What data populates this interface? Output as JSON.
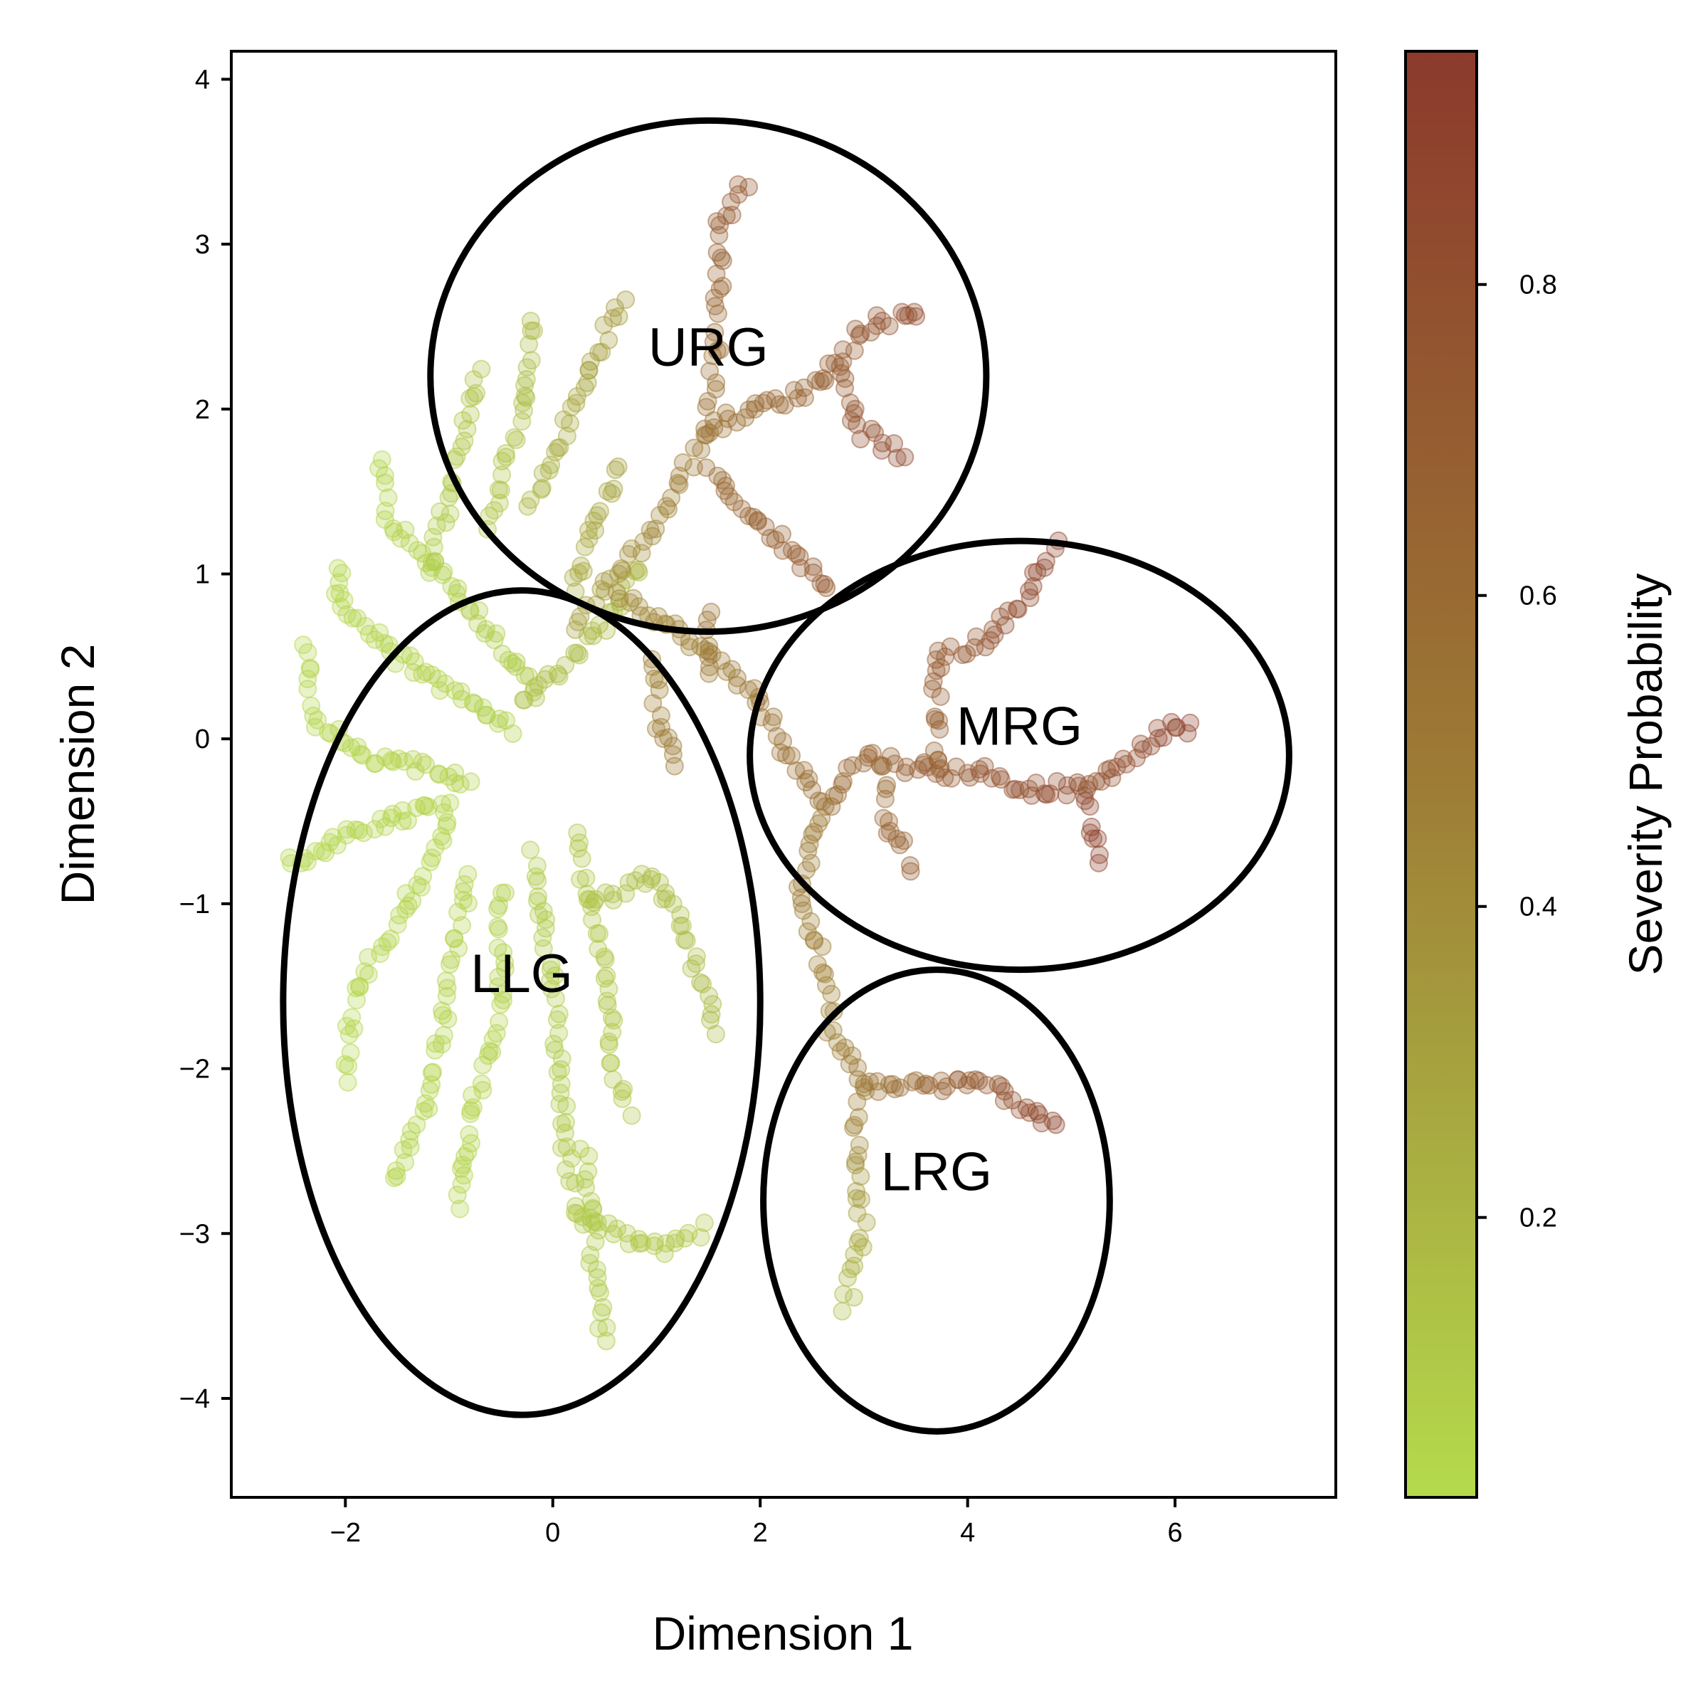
{
  "chart_data": {
    "type": "scatter",
    "xlabel": "Dimension 1",
    "ylabel": "Dimension 2",
    "xlim": [
      -3.1,
      7.55
    ],
    "ylim": [
      -4.6,
      4.17
    ],
    "xticks": [
      -2,
      0,
      2,
      4,
      6
    ],
    "yticks": [
      -4,
      -3,
      -2,
      -1,
      0,
      1,
      2,
      3,
      4
    ],
    "xtick_labels": [
      "−2",
      "0",
      "2",
      "4",
      "6"
    ],
    "ytick_labels": [
      "−4",
      "−3",
      "−2",
      "−1",
      "0",
      "1",
      "2",
      "3",
      "4"
    ],
    "grid": false,
    "point_alpha": 0.3,
    "colorbar": {
      "label": "Severity Probability",
      "range": [
        0.02,
        0.95
      ],
      "ticks": [
        0.2,
        0.4,
        0.6,
        0.8
      ],
      "tick_labels": [
        "0.2",
        "0.4",
        "0.6",
        "0.8"
      ],
      "colors": [
        "#b4db4c",
        "#9d7b35",
        "#8c3a2c"
      ]
    },
    "branches": [
      {
        "points": [
          [
            -0.2,
            0.3
          ],
          [
            -1.0,
            0.95
          ],
          [
            -1.6,
            1.35
          ],
          [
            -1.65,
            1.75
          ]
        ],
        "p": [
          0.1,
          0.05
        ]
      },
      {
        "points": [
          [
            -0.4,
            0.05
          ],
          [
            -1.5,
            0.5
          ],
          [
            -2.1,
            0.85
          ],
          [
            -2.0,
            1.1
          ]
        ],
        "p": [
          0.08,
          0.04
        ]
      },
      {
        "points": [
          [
            -0.8,
            -0.25
          ],
          [
            -1.8,
            -0.1
          ],
          [
            -2.3,
            0.1
          ],
          [
            -2.4,
            0.6
          ]
        ],
        "p": [
          0.07,
          0.04
        ]
      },
      {
        "points": [
          [
            -1.0,
            -0.4
          ],
          [
            -1.9,
            -0.55
          ],
          [
            -2.6,
            -0.8
          ]
        ],
        "p": [
          0.06,
          0.04
        ]
      },
      {
        "points": [
          [
            -1.0,
            -0.5
          ],
          [
            -1.3,
            -0.9
          ],
          [
            -1.9,
            -1.5
          ],
          [
            -2.0,
            -2.1
          ]
        ],
        "p": [
          0.06,
          0.04
        ]
      },
      {
        "points": [
          [
            -0.8,
            -0.8
          ],
          [
            -1.0,
            -1.5
          ],
          [
            -1.2,
            -2.2
          ],
          [
            -1.6,
            -2.75
          ]
        ],
        "p": [
          0.07,
          0.05
        ]
      },
      {
        "points": [
          [
            -0.5,
            -0.9
          ],
          [
            -0.5,
            -1.6
          ],
          [
            -0.8,
            -2.3
          ],
          [
            -0.9,
            -2.9
          ]
        ],
        "p": [
          0.08,
          0.05
        ]
      },
      {
        "points": [
          [
            -0.2,
            -0.7
          ],
          [
            0.0,
            -1.5
          ],
          [
            0.1,
            -2.3
          ],
          [
            0.2,
            -2.9
          ],
          [
            1.0,
            -3.1
          ],
          [
            1.5,
            -2.95
          ]
        ],
        "p": [
          0.1,
          0.12
        ]
      },
      {
        "points": [
          [
            0.3,
            -2.5
          ],
          [
            0.4,
            -3.2
          ],
          [
            0.5,
            -3.7
          ]
        ],
        "p": [
          0.1,
          0.1
        ]
      },
      {
        "points": [
          [
            0.2,
            -0.6
          ],
          [
            0.5,
            -1.3
          ],
          [
            0.6,
            -2.0
          ],
          [
            0.75,
            -2.3
          ]
        ],
        "p": [
          0.12,
          0.12
        ]
      },
      {
        "points": [
          [
            0.4,
            -1.0
          ],
          [
            1.0,
            -0.8
          ],
          [
            1.3,
            -1.2
          ],
          [
            1.6,
            -1.8
          ]
        ],
        "p": [
          0.15,
          0.18
        ]
      },
      {
        "points": [
          [
            -0.3,
            0.2
          ],
          [
            0.5,
            0.7
          ],
          [
            0.9,
            1.1
          ]
        ],
        "p": [
          0.15,
          0.2
        ]
      },
      {
        "points": [
          [
            -0.6,
            1.3
          ],
          [
            -0.3,
            2.0
          ],
          [
            -0.2,
            2.6
          ]
        ],
        "p": [
          0.12,
          0.18
        ]
      },
      {
        "points": [
          [
            -1.2,
            1.0
          ],
          [
            -0.9,
            1.7
          ],
          [
            -0.7,
            2.3
          ]
        ],
        "p": [
          0.08,
          0.15
        ]
      },
      {
        "points": [
          [
            -0.2,
            1.4
          ],
          [
            0.4,
            2.3
          ],
          [
            0.7,
            2.7
          ]
        ],
        "p": [
          0.2,
          0.35
        ]
      },
      {
        "points": [
          [
            0.2,
            0.9
          ],
          [
            0.6,
            1.6
          ],
          [
            0.7,
            1.65
          ]
        ],
        "p": [
          0.25,
          0.3
        ]
      },
      {
        "points": [
          [
            0.2,
            0.7
          ],
          [
            1.0,
            1.3
          ],
          [
            1.5,
            1.9
          ],
          [
            1.6,
            2.5
          ],
          [
            1.6,
            3.1
          ],
          [
            1.9,
            3.4
          ]
        ],
        "p": [
          0.3,
          0.75
        ]
      },
      {
        "points": [
          [
            1.5,
            1.9
          ],
          [
            2.4,
            2.1
          ],
          [
            2.8,
            2.3
          ],
          [
            3.0,
            2.5
          ],
          [
            3.6,
            2.6
          ]
        ],
        "p": [
          0.55,
          0.82
        ]
      },
      {
        "points": [
          [
            2.8,
            2.3
          ],
          [
            2.9,
            1.9
          ],
          [
            3.4,
            1.7
          ]
        ],
        "p": [
          0.7,
          0.85
        ]
      },
      {
        "points": [
          [
            1.5,
            1.6
          ],
          [
            2.2,
            1.2
          ],
          [
            2.7,
            0.9
          ]
        ],
        "p": [
          0.6,
          0.75
        ]
      },
      {
        "points": [
          [
            0.6,
            0.9
          ],
          [
            1.3,
            0.6
          ],
          [
            1.9,
            0.3
          ],
          [
            2.2,
            0.0
          ]
        ],
        "p": [
          0.4,
          0.55
        ]
      },
      {
        "points": [
          [
            1.0,
            0.5
          ],
          [
            1.0,
            0.1
          ],
          [
            1.2,
            -0.2
          ]
        ],
        "p": [
          0.45,
          0.5
        ]
      },
      {
        "points": [
          [
            1.5,
            0.4
          ],
          [
            1.5,
            0.8
          ]
        ],
        "p": [
          0.5,
          0.55
        ]
      },
      {
        "points": [
          [
            2.2,
            0.0
          ],
          [
            2.6,
            -0.4
          ],
          [
            3.0,
            -0.1
          ],
          [
            3.7,
            -0.2
          ],
          [
            4.2,
            -0.2
          ],
          [
            4.5,
            -0.3
          ],
          [
            5.1,
            -0.3
          ],
          [
            5.3,
            -0.8
          ]
        ],
        "p": [
          0.55,
          0.9
        ]
      },
      {
        "points": [
          [
            3.7,
            -0.2
          ],
          [
            3.7,
            0.5
          ],
          [
            4.2,
            0.6
          ],
          [
            4.6,
            0.9
          ],
          [
            4.9,
            1.2
          ]
        ],
        "p": [
          0.65,
          0.88
        ]
      },
      {
        "points": [
          [
            5.1,
            -0.3
          ],
          [
            5.6,
            -0.1
          ],
          [
            6.0,
            0.1
          ],
          [
            6.2,
            0.05
          ]
        ],
        "p": [
          0.75,
          0.9
        ]
      },
      {
        "points": [
          [
            3.2,
            -0.2
          ],
          [
            3.2,
            -0.5
          ],
          [
            3.5,
            -0.8
          ]
        ],
        "p": [
          0.6,
          0.7
        ]
      },
      {
        "points": [
          [
            2.6,
            -0.4
          ],
          [
            2.4,
            -0.9
          ],
          [
            2.6,
            -1.4
          ],
          [
            2.7,
            -1.8
          ]
        ],
        "p": [
          0.5,
          0.45
        ]
      },
      {
        "points": [
          [
            2.7,
            -1.8
          ],
          [
            3.0,
            -2.1
          ],
          [
            3.6,
            -2.1
          ],
          [
            4.2,
            -2.1
          ],
          [
            4.9,
            -2.35
          ]
        ],
        "p": [
          0.45,
          0.88
        ]
      },
      {
        "points": [
          [
            3.0,
            -2.1
          ],
          [
            2.9,
            -2.5
          ],
          [
            3.0,
            -3.0
          ],
          [
            2.8,
            -3.5
          ]
        ],
        "p": [
          0.5,
          0.15
        ]
      }
    ],
    "annotations": [
      {
        "label": "URG",
        "x": 1.5,
        "y": 2.35,
        "ellipse": {
          "cx": 1.5,
          "cy": 2.2,
          "rx": 2.68,
          "ry": 1.55
        }
      },
      {
        "label": "MRG",
        "x": 4.5,
        "y": 0.05,
        "ellipse": {
          "cx": 4.5,
          "cy": -0.1,
          "rx": 2.6,
          "ry": 1.3
        }
      },
      {
        "label": "LLG",
        "x": -0.3,
        "y": -1.45,
        "ellipse": {
          "cx": -0.3,
          "cy": -1.6,
          "rx": 2.3,
          "ry": 2.5
        }
      },
      {
        "label": "LRG",
        "x": 3.7,
        "y": -2.65,
        "ellipse": {
          "cx": 3.7,
          "cy": -2.8,
          "rx": 1.67,
          "ry": 1.4
        }
      }
    ]
  }
}
